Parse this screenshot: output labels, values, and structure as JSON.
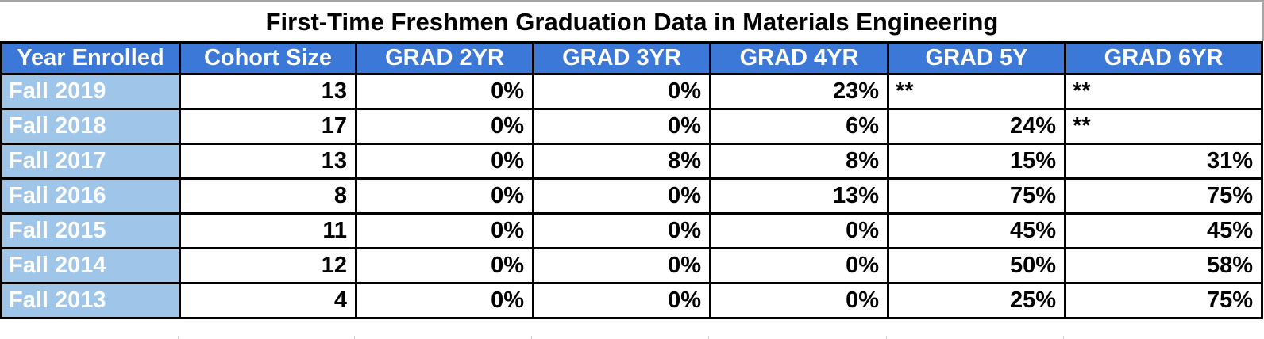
{
  "title": "First-Time Freshmen Graduation Data in Materials Engineering",
  "colors": {
    "header_bg": "#3C78D8",
    "header_text": "#FFFFFF",
    "row_label_bg": "#9FC5E8",
    "row_label_text": "#FFFFFF",
    "data_text": "#000000",
    "grid_border": "#000000",
    "screen_edge": "#A6A6A6"
  },
  "footnote_marker": "**",
  "chart_data": {
    "type": "table",
    "title": "First-Time Freshmen Graduation Data in Materials Engineering",
    "columns": [
      "Year Enrolled",
      "Cohort Size",
      "GRAD 2YR",
      "GRAD 3YR",
      "GRAD 4YR",
      "GRAD 5Y",
      "GRAD 6YR"
    ],
    "rows": [
      [
        "Fall 2019",
        "13",
        "0%",
        "0%",
        "23%",
        "**",
        "**"
      ],
      [
        "Fall 2018",
        "17",
        "0%",
        "0%",
        "6%",
        "24%",
        "**"
      ],
      [
        "Fall 2017",
        "13",
        "0%",
        "8%",
        "8%",
        "15%",
        "31%"
      ],
      [
        "Fall 2016",
        "8",
        "0%",
        "0%",
        "13%",
        "75%",
        "75%"
      ],
      [
        "Fall 2015",
        "11",
        "0%",
        "0%",
        "0%",
        "45%",
        "45%"
      ],
      [
        "Fall 2014",
        "12",
        "0%",
        "0%",
        "0%",
        "50%",
        "58%"
      ],
      [
        "Fall 2013",
        "4",
        "0%",
        "0%",
        "0%",
        "25%",
        "75%"
      ]
    ]
  }
}
